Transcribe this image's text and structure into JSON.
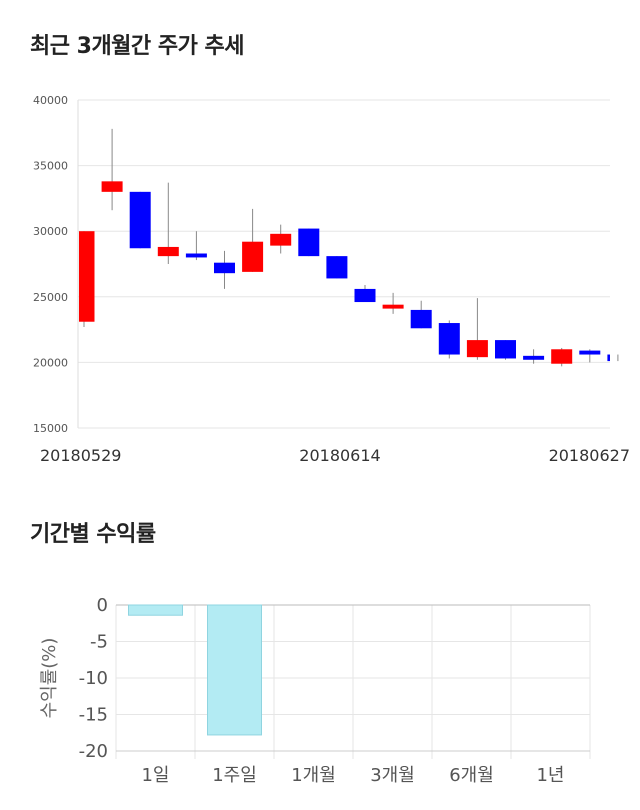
{
  "section_titles": {
    "price_trend": "최근 3개월간 주가 추세",
    "returns": "기간별 수익률"
  },
  "colors": {
    "up": "#ff0000",
    "down": "#0000ff",
    "wick": "#888888",
    "grid": "#e6e6e6",
    "return_bar": "#b3ebf3",
    "return_bar_border": "#8fd4e0"
  },
  "chart_data": [
    {
      "type": "candlestick",
      "title": "",
      "ylim": [
        15000,
        40000
      ],
      "y_ticks": [
        "40000",
        "35000",
        "30000",
        "25000",
        "20000",
        "15000"
      ],
      "x_tick_labels": [
        "20180529",
        "20180614",
        "20180627"
      ],
      "grid": true,
      "candles": [
        {
          "open": 23100,
          "close": 30000,
          "high": 30000,
          "low": 22700
        },
        {
          "open": 33000,
          "close": 33800,
          "high": 37800,
          "low": 31600
        },
        {
          "open": 33000,
          "close": 28700,
          "high": 33000,
          "low": 28700
        },
        {
          "open": 28100,
          "close": 28800,
          "high": 33700,
          "low": 27500
        },
        {
          "open": 28300,
          "close": 28000,
          "high": 30000,
          "low": 27800
        },
        {
          "open": 27600,
          "close": 26800,
          "high": 28500,
          "low": 25600
        },
        {
          "open": 26900,
          "close": 29200,
          "high": 31700,
          "low": 26900
        },
        {
          "open": 28900,
          "close": 29800,
          "high": 30500,
          "low": 28300
        },
        {
          "open": 30200,
          "close": 28100,
          "high": 30200,
          "low": 28100
        },
        {
          "open": 28100,
          "close": 26400,
          "high": 28100,
          "low": 26400
        },
        {
          "open": 25600,
          "close": 24600,
          "high": 25900,
          "low": 24600
        },
        {
          "open": 24100,
          "close": 24400,
          "high": 25300,
          "low": 23700
        },
        {
          "open": 24000,
          "close": 22600,
          "high": 24700,
          "low": 22600
        },
        {
          "open": 23000,
          "close": 20600,
          "high": 23200,
          "low": 20300
        },
        {
          "open": 20400,
          "close": 21700,
          "high": 24900,
          "low": 20200
        },
        {
          "open": 21700,
          "close": 20300,
          "high": 21700,
          "low": 20200
        },
        {
          "open": 20500,
          "close": 20200,
          "high": 21000,
          "low": 19900
        },
        {
          "open": 19900,
          "close": 21000,
          "high": 21100,
          "low": 19700
        },
        {
          "open": 20900,
          "close": 20600,
          "high": 21000,
          "low": 20000
        },
        {
          "open": 20600,
          "close": 20100,
          "high": 20600,
          "low": 20100
        }
      ]
    },
    {
      "type": "bar",
      "title": "",
      "ylabel": "수익률(%)",
      "categories": [
        "1일",
        "1주일",
        "1개월",
        "3개월",
        "6개월",
        "1년"
      ],
      "values": [
        -1.4,
        -17.8,
        null,
        null,
        null,
        null
      ],
      "ylim": [
        -20,
        0
      ],
      "y_ticks": [
        "0",
        "-5",
        "-10",
        "-15",
        "-20"
      ],
      "grid": true
    }
  ]
}
